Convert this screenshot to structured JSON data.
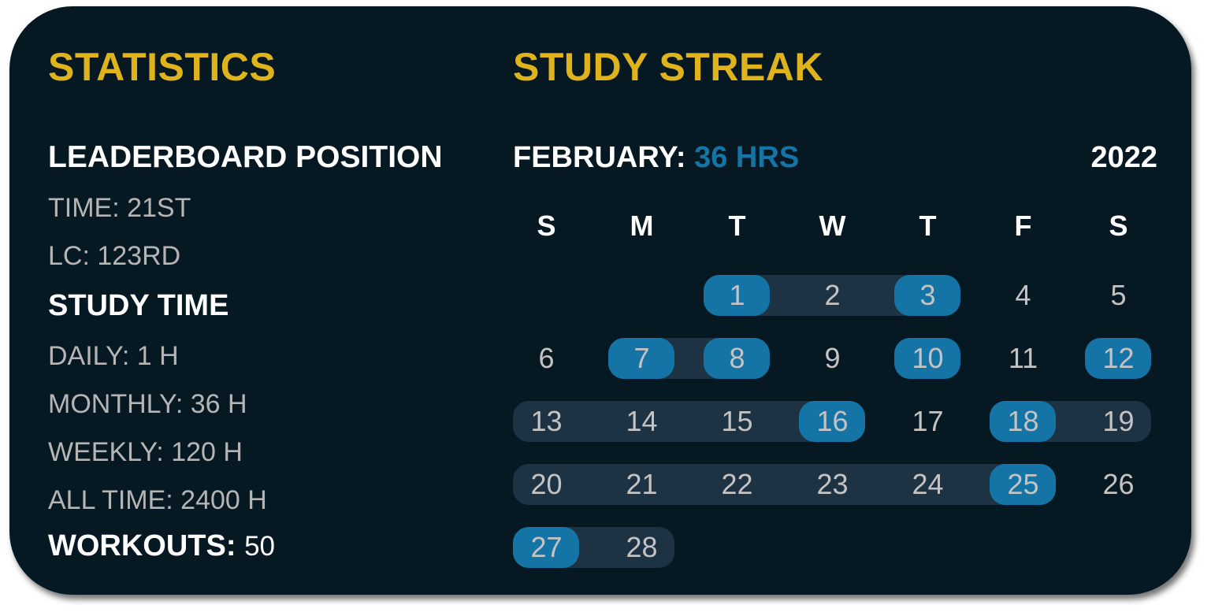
{
  "colors": {
    "accent": "#dfb31c",
    "highlight": "#1574a6",
    "track": "#1d3243",
    "background": "#061822"
  },
  "statistics": {
    "title": "STATISTICS",
    "leaderboard_heading": "LEADERBOARD POSITION",
    "time": "TIME: 21ST",
    "lc": "LC: 123RD",
    "study_time_heading": "STUDY TIME",
    "daily": "DAILY: 1 H",
    "monthly": "MONTHLY: 36 H",
    "weekly": "WEEKLY: 120 H",
    "all_time": "ALL TIME: 2400 H",
    "workouts_label": "WORKOUTS:",
    "workouts_value": "50"
  },
  "streak": {
    "title": "STUDY STREAK",
    "month_label": "FEBRUARY:",
    "month_hours": "36 HRS",
    "year": "2022",
    "weekdays": [
      "S",
      "M",
      "T",
      "W",
      "T",
      "F",
      "S"
    ],
    "first_weekday": 2,
    "days_in_month": 28,
    "studied_days": [
      1,
      3,
      7,
      8,
      10,
      12,
      16,
      18,
      25,
      27
    ],
    "streak_ranges": [
      [
        1,
        3
      ],
      [
        7,
        8
      ],
      [
        13,
        16
      ],
      [
        18,
        19
      ],
      [
        20,
        25
      ],
      [
        27,
        28
      ]
    ]
  }
}
